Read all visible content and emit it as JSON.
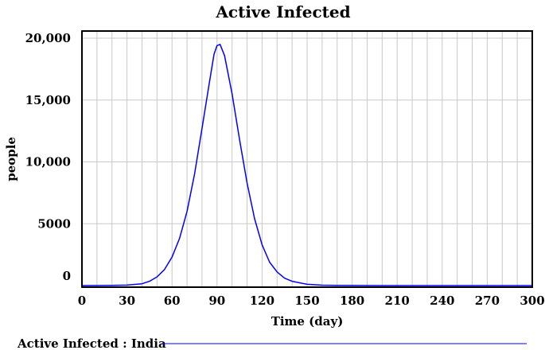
{
  "chart_data": {
    "type": "line",
    "title": "Active Infected",
    "xlabel": "Time (day)",
    "ylabel": "people",
    "xlim": [
      0,
      300
    ],
    "ylim": [
      0,
      20000
    ],
    "x_ticks": [
      "0",
      "30",
      "60",
      "90",
      "120",
      "150",
      "180",
      "210",
      "240",
      "270",
      "300"
    ],
    "y_ticks": [
      "0",
      "5000",
      "10,000",
      "15,000",
      "20,000"
    ],
    "grid": true,
    "legend": "bottom-left",
    "colors": {
      "series": "#0000ff",
      "grid": "#c8c8c8",
      "frame": "#000000"
    },
    "series": [
      {
        "name": "Active Infected : India",
        "x": [
          0,
          20,
          30,
          40,
          45,
          50,
          55,
          60,
          65,
          70,
          75,
          80,
          85,
          88,
          90,
          92,
          95,
          100,
          105,
          110,
          115,
          120,
          125,
          130,
          135,
          140,
          150,
          160,
          170,
          200,
          250,
          300
        ],
        "y": [
          0,
          10,
          40,
          150,
          350,
          700,
          1300,
          2300,
          3800,
          6000,
          9000,
          12700,
          16500,
          18700,
          19400,
          19500,
          18600,
          15500,
          11800,
          8300,
          5400,
          3300,
          1900,
          1100,
          600,
          350,
          100,
          30,
          10,
          0,
          0,
          0
        ]
      }
    ]
  }
}
